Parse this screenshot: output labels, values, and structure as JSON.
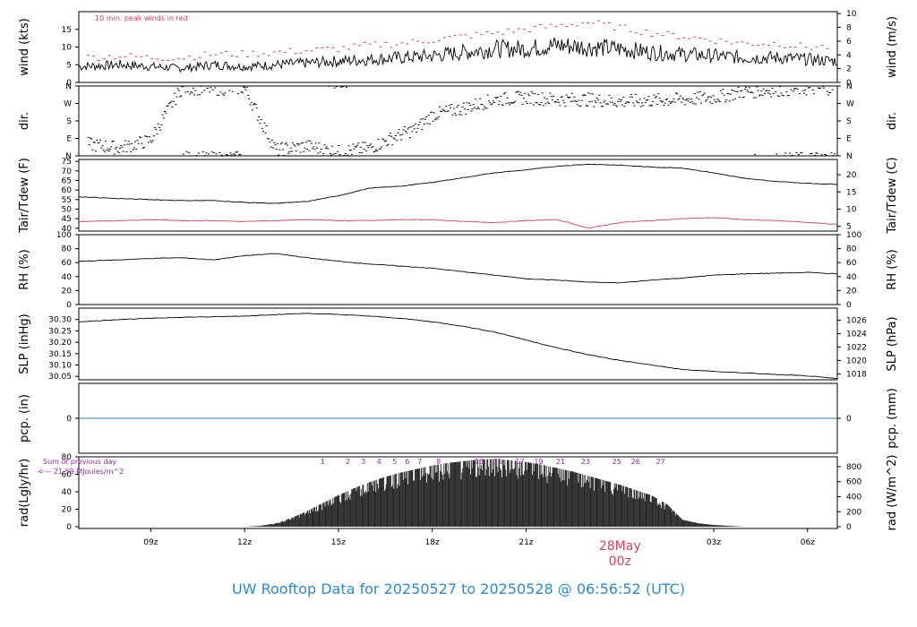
{
  "footer": {
    "title": "UW Rooftop Data for 20250527  to  20250528 @ 06:56:52  (UTC)"
  },
  "colors": {
    "line": "#000000",
    "red": "#e0405a",
    "blue": "#3c6ab4",
    "purple": "#9c27b0",
    "title": "#2a8ad8"
  },
  "chart_data": {
    "type": "line",
    "x_range": [
      6.7,
      30.95
    ],
    "x_ticks": [
      {
        "x": 9,
        "label": "09z"
      },
      {
        "x": 12,
        "label": "12z"
      },
      {
        "x": 15,
        "label": "15z"
      },
      {
        "x": 18,
        "label": "18z"
      },
      {
        "x": 21,
        "label": "21z"
      },
      {
        "x": 27,
        "label": "03z"
      },
      {
        "x": 30,
        "label": "06z"
      }
    ],
    "date_marker": {
      "x": 24,
      "date": "28May",
      "time": "00z"
    },
    "panels": [
      {
        "id": "wind",
        "left_label": "wind (kts)",
        "right_label": "wind (m/s)",
        "ylim": [
          0,
          20
        ],
        "left_ticks": [
          "0",
          "5",
          "10",
          "15"
        ],
        "left_tick_values": [
          0,
          5,
          10,
          15
        ],
        "right_ticks": [
          "0",
          "2",
          "4",
          "6",
          "8",
          "10"
        ],
        "right_tick_values": [
          0,
          3.89,
          7.78,
          11.66,
          15.55,
          19.44
        ],
        "annotation": "10 min. peak winds in red",
        "series": [
          {
            "name": "wind speed",
            "x": [
              6.7,
              8,
              9,
              10,
              11,
              12,
              13,
              14,
              15,
              16,
              17,
              18,
              19,
              20,
              21,
              22,
              23,
              24,
              25,
              26,
              27,
              28,
              29,
              30,
              30.95
            ],
            "y": [
              4.5,
              5,
              4.5,
              4,
              5,
              4.5,
              5,
              5.5,
              6,
              6.5,
              7,
              7.5,
              8.5,
              9.5,
              9.5,
              10.5,
              10,
              9.5,
              8.5,
              8,
              7.5,
              7,
              7,
              6.5,
              6
            ]
          },
          {
            "name": "peak winds",
            "x": [
              7,
              8,
              9,
              10,
              11,
              12,
              13,
              14,
              15,
              16,
              17,
              18,
              19,
              20,
              21,
              22,
              23,
              24,
              25,
              26,
              27,
              28,
              29,
              30,
              30.8
            ],
            "y": [
              7,
              7.5,
              7,
              7,
              8,
              8,
              8.5,
              9,
              9.5,
              10.5,
              11,
              12,
              13,
              14,
              15,
              16,
              17,
              15.5,
              14,
              13,
              12,
              11,
              11,
              10,
              10
            ]
          }
        ]
      },
      {
        "id": "dir",
        "left_label": "dir.",
        "right_label": "dir.",
        "ylim": [
          0,
          360
        ],
        "left_ticks": [
          "N",
          "E",
          "S",
          "W",
          "N"
        ],
        "left_tick_values": [
          0,
          90,
          180,
          270,
          360
        ],
        "right_ticks": [
          "N",
          "E",
          "S",
          "W",
          "N"
        ],
        "right_tick_values": [
          0,
          90,
          180,
          270,
          360
        ],
        "series": [
          {
            "name": "wind direction",
            "x": [
              7,
              8,
              9,
              9.5,
              10,
              11,
              12,
              13,
              14,
              15,
              16,
              17,
              17.5,
              18,
              19,
              20,
              21,
              22,
              23,
              24,
              25,
              26,
              27,
              28,
              29,
              30,
              30.9
            ],
            "y": [
              60,
              40,
              80,
              220,
              350,
              345,
              350,
              30,
              50,
              20,
              40,
              110,
              140,
              210,
              245,
              290,
              300,
              290,
              290,
              280,
              285,
              290,
              300,
              330,
              340,
              345,
              350
            ]
          }
        ]
      },
      {
        "id": "temp",
        "left_label": "Tair/Tdew (F)",
        "right_label": "Tair/Tdew (C)",
        "ylim": [
          38.5,
          76
        ],
        "left_ticks": [
          "40",
          "45",
          "50",
          "55",
          "60",
          "65",
          "70",
          "75"
        ],
        "left_tick_values": [
          40,
          45,
          50,
          55,
          60,
          65,
          70,
          75
        ],
        "right_ticks": [
          "5",
          "10",
          "15",
          "20"
        ],
        "right_tick_values": [
          41,
          50,
          59,
          68
        ],
        "series": [
          {
            "name": "Tair",
            "x": [
              6.7,
              8,
              9,
              10,
              11,
              12,
              13,
              14,
              15,
              16,
              17,
              18,
              19,
              20,
              21,
              22,
              23,
              24,
              25,
              26,
              27,
              28,
              29,
              30,
              30.95
            ],
            "y": [
              56.5,
              55.5,
              55,
              54.5,
              54.5,
              53.5,
              53,
              54,
              57,
              61,
              62,
              64,
              66.5,
              69,
              70.5,
              72.5,
              73.5,
              73,
              72,
              71.5,
              69,
              66,
              64.5,
              63.5,
              63
            ]
          },
          {
            "name": "Tdew",
            "x": [
              6.7,
              8,
              9,
              10,
              11,
              12,
              13,
              14,
              15,
              16,
              17,
              18,
              19,
              20,
              21,
              22,
              23,
              24,
              25,
              26,
              27,
              28,
              29,
              30,
              30.95
            ],
            "y": [
              43.5,
              44,
              44.5,
              44,
              44,
              43.5,
              44,
              44.5,
              44,
              44,
              44.5,
              44.5,
              43.5,
              43,
              44,
              44.5,
              40,
              43,
              44,
              45,
              45.5,
              44.5,
              44,
              43,
              42
            ]
          }
        ]
      },
      {
        "id": "rh",
        "left_label": "RH (%)",
        "right_label": "RH (%)",
        "ylim": [
          0,
          100
        ],
        "left_ticks": [
          "0",
          "20",
          "40",
          "60",
          "80",
          "100"
        ],
        "left_tick_values": [
          0,
          20,
          40,
          60,
          80,
          100
        ],
        "right_ticks": [
          "0",
          "20",
          "40",
          "60",
          "80",
          "100"
        ],
        "right_tick_values": [
          0,
          20,
          40,
          60,
          80,
          100
        ],
        "series": [
          {
            "name": "RH",
            "x": [
              6.7,
              8,
              9,
              10,
              11,
              12,
              13,
              14,
              15,
              16,
              17,
              18,
              19,
              20,
              21,
              22,
              23,
              24,
              25,
              26,
              27,
              28,
              29,
              30,
              30.95
            ],
            "y": [
              62,
              64,
              66,
              67,
              64,
              70,
              73,
              67,
              62,
              58,
              55,
              52,
              47,
              42,
              37,
              35,
              32,
              31,
              35,
              38,
              42,
              44,
              45,
              46,
              44
            ]
          }
        ]
      },
      {
        "id": "slp",
        "left_label": "SLP (inHg)",
        "right_label": "SLP (hPa)",
        "ylim": [
          30.035,
          30.35
        ],
        "left_ticks": [
          "30.05",
          "30.10",
          "30.15",
          "30.20",
          "30.25",
          "30.30"
        ],
        "left_tick_values": [
          30.05,
          30.1,
          30.15,
          30.2,
          30.25,
          30.3
        ],
        "right_ticks": [
          "1018",
          "1020",
          "1022",
          "1024",
          "1026"
        ],
        "right_tick_values": [
          30.061,
          30.12,
          30.179,
          30.238,
          30.297
        ],
        "series": [
          {
            "name": "SLP",
            "x": [
              6.7,
              8,
              9,
              10,
              11,
              12,
              13,
              14,
              15,
              16,
              17,
              18,
              19,
              20,
              21,
              22,
              23,
              24,
              25,
              26,
              27,
              28,
              29,
              30,
              30.95
            ],
            "y": [
              30.29,
              30.3,
              30.305,
              30.31,
              30.312,
              30.315,
              30.322,
              30.327,
              30.322,
              30.315,
              30.305,
              30.29,
              30.27,
              30.245,
              30.21,
              30.175,
              30.145,
              30.12,
              30.1,
              30.08,
              30.072,
              30.065,
              30.058,
              30.052,
              30.04
            ]
          }
        ]
      },
      {
        "id": "pcp",
        "left_label": "pcp. (in)",
        "right_label": "pcp. (mm)",
        "ylim": [
          -1,
          1
        ],
        "left_ticks": [
          "0"
        ],
        "left_tick_values": [
          0
        ],
        "right_ticks": [
          "0"
        ],
        "right_tick_values": [
          0
        ],
        "series": [
          {
            "name": "precip",
            "x": [
              6.7,
              30.95
            ],
            "y": [
              0,
              0
            ]
          }
        ]
      },
      {
        "id": "rad",
        "left_label": "rad(Lgly/hr)",
        "right_label": "rad (W/m^2)",
        "ylim": [
          -2,
          80
        ],
        "left_ticks": [
          "0",
          "20",
          "40",
          "60",
          "80"
        ],
        "left_tick_values": [
          0,
          20,
          40,
          60,
          80
        ],
        "right_ticks": [
          "0",
          "200",
          "400",
          "600",
          "800"
        ],
        "right_tick_values": [
          0,
          17.2,
          34.4,
          51.6,
          68.8
        ],
        "note_line1": "Sum of previous day",
        "note_line2": "<--- 21.59 MJoules/m^2",
        "hour_labels": [
          {
            "x": 14.5,
            "label": "1"
          },
          {
            "x": 15.3,
            "label": "2"
          },
          {
            "x": 15.8,
            "label": "3"
          },
          {
            "x": 16.3,
            "label": "4"
          },
          {
            "x": 16.8,
            "label": "5"
          },
          {
            "x": 17.2,
            "label": "6"
          },
          {
            "x": 17.6,
            "label": "7"
          },
          {
            "x": 18.2,
            "label": "8"
          },
          {
            "x": 19.5,
            "label": "13"
          },
          {
            "x": 20.1,
            "label": "15"
          },
          {
            "x": 20.8,
            "label": "17"
          },
          {
            "x": 21.4,
            "label": "19"
          },
          {
            "x": 22.1,
            "label": "21"
          },
          {
            "x": 22.9,
            "label": "23"
          },
          {
            "x": 23.9,
            "label": "25"
          },
          {
            "x": 24.5,
            "label": "26"
          },
          {
            "x": 25.3,
            "label": "27"
          }
        ],
        "series": [
          {
            "name": "radiation",
            "x": [
              12,
              12.5,
              13,
              13.5,
              14,
              14.5,
              15,
              15.5,
              16,
              16.5,
              17,
              17.5,
              18,
              18.5,
              19,
              19.5,
              20,
              20.5,
              21,
              21.5,
              22,
              22.5,
              23,
              23.5,
              24,
              24.5,
              25,
              25.5,
              26,
              26.5,
              27,
              27.5,
              28
            ],
            "y": [
              0,
              1,
              4,
              10,
              18,
              27,
              36,
              44,
              51,
              57,
              62,
              66,
              70,
              73,
              75,
              77,
              77.5,
              76,
              74,
              71,
              67,
              63,
              58,
              53,
              48,
              42,
              36,
              26,
              8,
              4,
              2,
              1,
              0
            ]
          }
        ]
      }
    ]
  }
}
